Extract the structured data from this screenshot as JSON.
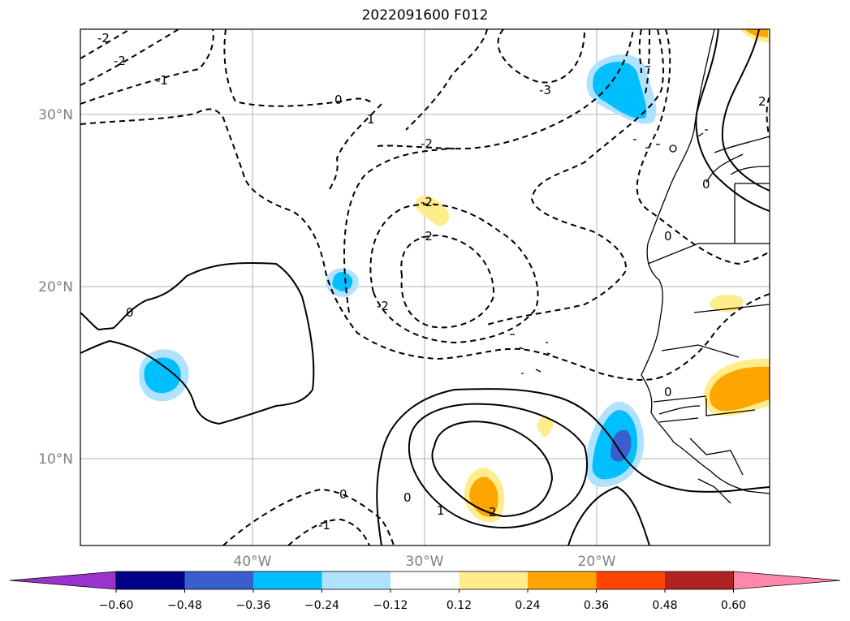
{
  "title": "2022091600 F012",
  "map": {
    "grid": true,
    "lat_ticks": [
      {
        "value": 30,
        "label": "30°N"
      },
      {
        "value": 20,
        "label": "20°N"
      },
      {
        "value": 10,
        "label": "10°N"
      }
    ],
    "lon_ticks": [
      {
        "value": -40,
        "label": "40°W"
      },
      {
        "value": -30,
        "label": "30°W"
      },
      {
        "value": -20,
        "label": "20°W"
      }
    ]
  },
  "contour_labels": [
    "-2",
    "-2",
    "-1",
    "0",
    "1",
    "-2",
    "-3",
    "2",
    "-2",
    "-2",
    "-2",
    "0",
    "0",
    "0",
    "0",
    "1",
    "2",
    "0",
    "-1",
    "0"
  ],
  "colorbar": {
    "extend": "both",
    "ticks": [
      "−0.60",
      "−0.48",
      "−0.36",
      "−0.24",
      "−0.12",
      "0.12",
      "0.24",
      "0.36",
      "0.48",
      "0.60"
    ],
    "colors": [
      "#9933cc",
      "#00008b",
      "#3a5fcd",
      "#00bfff",
      "#b0e2ff",
      "#ffffff",
      "#ffec8b",
      "#ffa500",
      "#ff4500",
      "#b22222",
      "#ff88aa"
    ]
  }
}
